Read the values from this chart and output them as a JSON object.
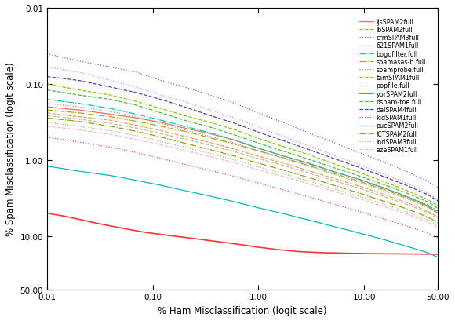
{
  "xlabel": "% Ham Misclassification (logit scale)",
  "ylabel": "% Spam Misclassification (logit scale)",
  "xlim": [
    0.01,
    50.0
  ],
  "ylim": [
    0.01,
    50.0
  ],
  "xticks": [
    0.01,
    0.1,
    1.0,
    10.0,
    50.0
  ],
  "yticks": [
    0.01,
    0.1,
    1.0,
    10.0,
    50.0
  ],
  "xtick_labels": [
    "0.01",
    "0.10",
    "1.00",
    "10.00",
    "50.00"
  ],
  "ytick_labels": [
    "0.01",
    "0.10",
    "1.00",
    "10.00",
    "50.00"
  ],
  "series": [
    {
      "label": "ijsSPAM2full",
      "color": "#ff6666",
      "linestyle": "-",
      "linewidth": 0.9,
      "x": [
        0.01,
        0.02,
        0.04,
        0.07,
        0.12,
        0.2,
        0.35,
        0.6,
        1.0,
        1.8,
        3.0,
        5.0,
        9.0,
        15.0,
        25.0,
        40.0,
        50.0
      ],
      "y": [
        0.2,
        0.22,
        0.25,
        0.28,
        0.32,
        0.38,
        0.45,
        0.55,
        0.7,
        0.9,
        1.1,
        1.4,
        1.8,
        2.3,
        3.0,
        4.0,
        5.0
      ]
    },
    {
      "label": "lbSPAM2full",
      "color": "#88cc00",
      "linestyle": "--",
      "linewidth": 0.9,
      "x": [
        0.01,
        0.02,
        0.04,
        0.07,
        0.12,
        0.2,
        0.35,
        0.6,
        1.0,
        1.8,
        3.0,
        5.0,
        9.0,
        15.0,
        25.0,
        40.0,
        50.0
      ],
      "y": [
        0.1,
        0.12,
        0.14,
        0.17,
        0.21,
        0.26,
        0.32,
        0.4,
        0.52,
        0.68,
        0.85,
        1.1,
        1.45,
        1.9,
        2.5,
        3.3,
        4.0
      ]
    },
    {
      "label": "crmSPAM3full",
      "color": "#6666ff",
      "linestyle": ":",
      "linewidth": 0.9,
      "x": [
        0.01,
        0.02,
        0.04,
        0.07,
        0.12,
        0.2,
        0.35,
        0.6,
        1.0,
        1.8,
        3.0,
        5.0,
        9.0,
        15.0,
        25.0,
        40.0,
        50.0
      ],
      "y": [
        0.04,
        0.05,
        0.06,
        0.07,
        0.09,
        0.11,
        0.14,
        0.18,
        0.24,
        0.33,
        0.44,
        0.58,
        0.8,
        1.05,
        1.4,
        1.9,
        2.3
      ]
    },
    {
      "label": "621SPAM1full",
      "color": "#dd88ff",
      "linestyle": ":",
      "linewidth": 0.9,
      "x": [
        0.01,
        0.02,
        0.04,
        0.07,
        0.12,
        0.2,
        0.35,
        0.6,
        1.0,
        1.8,
        3.0,
        5.0,
        9.0,
        15.0,
        25.0,
        40.0,
        50.0
      ],
      "y": [
        0.06,
        0.07,
        0.09,
        0.11,
        0.14,
        0.17,
        0.22,
        0.28,
        0.37,
        0.5,
        0.65,
        0.85,
        1.15,
        1.5,
        2.0,
        2.7,
        3.3
      ]
    },
    {
      "label": "bogofilter.full",
      "color": "#00ccaa",
      "linestyle": "-.",
      "linewidth": 0.9,
      "x": [
        0.01,
        0.02,
        0.04,
        0.07,
        0.12,
        0.2,
        0.35,
        0.6,
        1.0,
        1.8,
        3.0,
        5.0,
        9.0,
        15.0,
        25.0,
        40.0,
        50.0
      ],
      "y": [
        0.16,
        0.18,
        0.21,
        0.25,
        0.3,
        0.36,
        0.44,
        0.55,
        0.7,
        0.9,
        1.12,
        1.4,
        1.8,
        2.3,
        3.0,
        3.9,
        4.7
      ]
    },
    {
      "label": "spamasas-b.full",
      "color": "#aaaa00",
      "linestyle": "-.",
      "linewidth": 0.9,
      "x": [
        0.01,
        0.02,
        0.04,
        0.07,
        0.12,
        0.2,
        0.35,
        0.6,
        1.0,
        1.8,
        3.0,
        5.0,
        9.0,
        15.0,
        25.0,
        40.0,
        50.0
      ],
      "y": [
        0.22,
        0.24,
        0.27,
        0.31,
        0.36,
        0.42,
        0.51,
        0.62,
        0.76,
        0.95,
        1.18,
        1.48,
        1.9,
        2.4,
        3.1,
        4.1,
        4.9
      ]
    },
    {
      "label": "spamprobe.full",
      "color": "#999999",
      "linestyle": ":",
      "linewidth": 0.9,
      "x": [
        0.01,
        0.02,
        0.04,
        0.07,
        0.12,
        0.2,
        0.35,
        0.6,
        1.0,
        1.8,
        3.0,
        5.0,
        9.0,
        15.0,
        25.0,
        40.0,
        50.0
      ],
      "y": [
        0.18,
        0.2,
        0.23,
        0.27,
        0.33,
        0.4,
        0.49,
        0.6,
        0.76,
        0.97,
        1.2,
        1.52,
        1.96,
        2.5,
        3.2,
        4.2,
        5.0
      ]
    },
    {
      "label": "tamSPAM1full",
      "color": "#ff9944",
      "linestyle": "--",
      "linewidth": 0.9,
      "x": [
        0.01,
        0.02,
        0.04,
        0.07,
        0.12,
        0.2,
        0.35,
        0.6,
        1.0,
        1.8,
        3.0,
        5.0,
        9.0,
        15.0,
        25.0,
        40.0,
        50.0
      ],
      "y": [
        0.24,
        0.27,
        0.3,
        0.35,
        0.41,
        0.49,
        0.59,
        0.72,
        0.89,
        1.12,
        1.38,
        1.72,
        2.2,
        2.8,
        3.6,
        4.7,
        5.6
      ]
    },
    {
      "label": "popfile.full",
      "color": "#bbbbbb",
      "linestyle": "--",
      "linewidth": 0.9,
      "x": [
        0.01,
        0.02,
        0.04,
        0.07,
        0.12,
        0.2,
        0.35,
        0.6,
        1.0,
        1.8,
        3.0,
        5.0,
        9.0,
        15.0,
        25.0,
        40.0,
        50.0
      ],
      "y": [
        0.26,
        0.29,
        0.33,
        0.38,
        0.45,
        0.53,
        0.64,
        0.78,
        0.96,
        1.2,
        1.48,
        1.84,
        2.35,
        2.98,
        3.8,
        4.9,
        5.9
      ]
    },
    {
      "label": "yorSPAM2full",
      "color": "#ff3333",
      "linestyle": "-",
      "linewidth": 1.2,
      "x": [
        0.01,
        0.015,
        0.02,
        0.03,
        0.05,
        0.08,
        0.12,
        0.18,
        0.28,
        0.45,
        0.7,
        1.0,
        1.5,
        2.5,
        4.0,
        7.0,
        12.0,
        20.0,
        35.0,
        50.0
      ],
      "y": [
        5.0,
        5.5,
        6.0,
        6.8,
        7.8,
        8.8,
        9.5,
        10.2,
        11.0,
        12.0,
        13.0,
        14.0,
        15.0,
        16.0,
        16.5,
        16.8,
        17.0,
        17.1,
        17.2,
        17.3
      ]
    },
    {
      "label": "dspam-toe.full",
      "color": "#44bb44",
      "linestyle": "--",
      "linewidth": 0.9,
      "x": [
        0.01,
        0.02,
        0.04,
        0.07,
        0.12,
        0.2,
        0.35,
        0.6,
        1.0,
        1.8,
        3.0,
        5.0,
        9.0,
        15.0,
        25.0,
        40.0,
        50.0
      ],
      "y": [
        0.12,
        0.14,
        0.16,
        0.19,
        0.24,
        0.3,
        0.37,
        0.47,
        0.6,
        0.78,
        0.98,
        1.24,
        1.62,
        2.08,
        2.7,
        3.55,
        4.3
      ]
    },
    {
      "label": "dalSPAM4full",
      "color": "#4444cc",
      "linestyle": "--",
      "linewidth": 0.9,
      "x": [
        0.01,
        0.02,
        0.04,
        0.07,
        0.12,
        0.2,
        0.35,
        0.6,
        1.0,
        1.8,
        3.0,
        5.0,
        9.0,
        15.0,
        25.0,
        40.0,
        50.0
      ],
      "y": [
        0.08,
        0.09,
        0.11,
        0.13,
        0.16,
        0.2,
        0.26,
        0.33,
        0.43,
        0.57,
        0.73,
        0.94,
        1.25,
        1.63,
        2.14,
        2.85,
        3.45
      ]
    },
    {
      "label": "kidSPAM1full",
      "color": "#cc44cc",
      "linestyle": ":",
      "linewidth": 0.9,
      "x": [
        0.01,
        0.02,
        0.04,
        0.07,
        0.12,
        0.2,
        0.35,
        0.6,
        1.0,
        1.8,
        3.0,
        5.0,
        9.0,
        15.0,
        25.0,
        40.0,
        50.0
      ],
      "y": [
        0.5,
        0.58,
        0.68,
        0.8,
        0.95,
        1.14,
        1.37,
        1.65,
        2.0,
        2.5,
        3.05,
        3.75,
        4.75,
        5.9,
        7.3,
        9.1,
        10.5
      ]
    },
    {
      "label": "pucSPAM2full",
      "color": "#00bbbb",
      "linestyle": "-",
      "linewidth": 0.9,
      "x": [
        0.01,
        0.02,
        0.04,
        0.07,
        0.12,
        0.2,
        0.35,
        0.6,
        1.0,
        1.8,
        3.0,
        5.0,
        9.0,
        15.0,
        25.0,
        40.0,
        50.0
      ],
      "y": [
        1.2,
        1.4,
        1.6,
        1.85,
        2.15,
        2.52,
        2.98,
        3.55,
        4.25,
        5.15,
        6.15,
        7.4,
        9.1,
        11.0,
        13.5,
        16.5,
        19.0
      ]
    },
    {
      "label": "ICTSPAM2full",
      "color": "#88aa00",
      "linestyle": "-.",
      "linewidth": 0.9,
      "x": [
        0.01,
        0.02,
        0.04,
        0.07,
        0.12,
        0.2,
        0.35,
        0.6,
        1.0,
        1.8,
        3.0,
        5.0,
        9.0,
        15.0,
        25.0,
        40.0,
        50.0
      ],
      "y": [
        0.28,
        0.31,
        0.36,
        0.42,
        0.5,
        0.6,
        0.73,
        0.89,
        1.1,
        1.38,
        1.7,
        2.12,
        2.72,
        3.44,
        4.35,
        5.6,
        6.7
      ]
    },
    {
      "label": "indSPAM3full",
      "color": "#aaaaaa",
      "linestyle": ":",
      "linewidth": 0.9,
      "x": [
        0.01,
        0.02,
        0.04,
        0.07,
        0.12,
        0.2,
        0.35,
        0.6,
        1.0,
        1.8,
        3.0,
        5.0,
        9.0,
        15.0,
        25.0,
        40.0,
        50.0
      ],
      "y": [
        0.32,
        0.36,
        0.41,
        0.48,
        0.57,
        0.68,
        0.82,
        1.0,
        1.23,
        1.54,
        1.89,
        2.35,
        3.0,
        3.78,
        4.77,
        6.1,
        7.3
      ]
    },
    {
      "label": "azeSPAM1full",
      "color": "#ffbbbb",
      "linestyle": "--",
      "linewidth": 0.9,
      "x": [
        0.01,
        0.02,
        0.04,
        0.07,
        0.12,
        0.2,
        0.35,
        0.6,
        1.0,
        1.8,
        3.0,
        5.0,
        9.0,
        15.0,
        25.0,
        40.0,
        50.0
      ],
      "y": [
        0.36,
        0.4,
        0.46,
        0.54,
        0.63,
        0.75,
        0.9,
        1.09,
        1.34,
        1.67,
        2.05,
        2.54,
        3.23,
        4.05,
        5.1,
        6.5,
        7.7
      ]
    }
  ]
}
